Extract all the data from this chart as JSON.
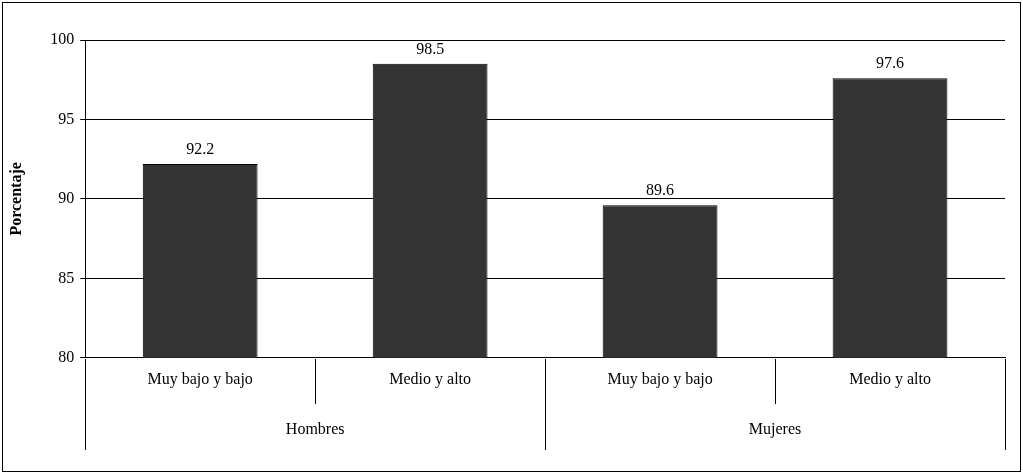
{
  "chart_data": {
    "type": "bar",
    "ylabel": "Porcentaje",
    "categories": [
      "Muy bajo y bajo",
      "Medio y alto",
      "Muy bajo y bajo",
      "Medio y alto"
    ],
    "values": [
      92.2,
      98.5,
      89.6,
      97.6
    ],
    "color": "#333333",
    "ylim": [
      80,
      100
    ],
    "yticks": [
      80,
      85,
      90,
      95,
      100
    ],
    "grid": "y",
    "data_labels": true,
    "legend": false,
    "annotations": [
      "Hombres",
      "Mujeres"
    ]
  }
}
